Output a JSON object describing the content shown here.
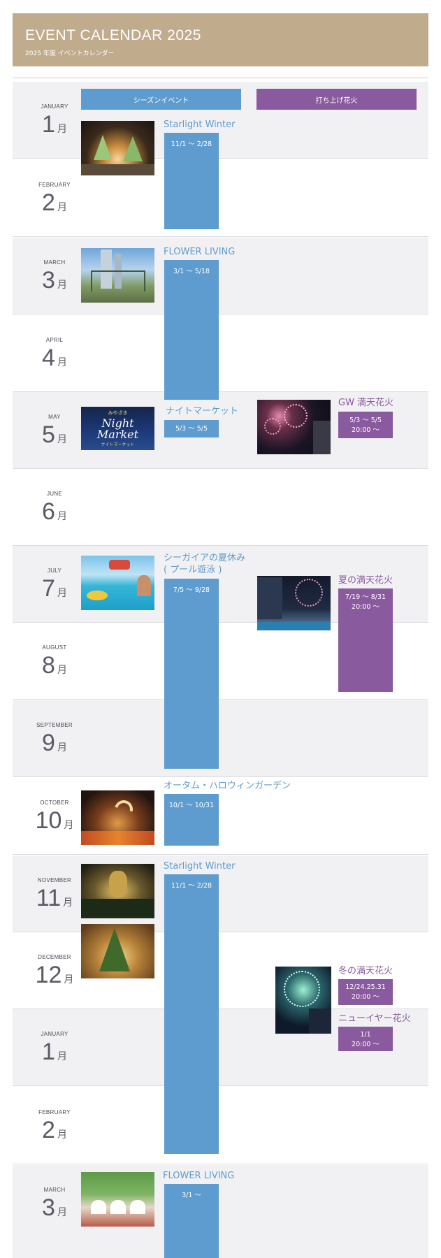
{
  "header": {
    "title": "EVENT CALENDAR 2025",
    "subtitle": "2025 年度 イベントカレンダー"
  },
  "legend": {
    "season": "シーズンイベント",
    "fireworks": "打ち上げ花火"
  },
  "month_suffix": "月",
  "months": [
    {
      "en": "JANUARY",
      "num": "1"
    },
    {
      "en": "FEBRUARY",
      "num": "2"
    },
    {
      "en": "MARCH",
      "num": "3"
    },
    {
      "en": "APRIL",
      "num": "4"
    },
    {
      "en": "MAY",
      "num": "5"
    },
    {
      "en": "JUNE",
      "num": "6"
    },
    {
      "en": "JULY",
      "num": "7"
    },
    {
      "en": "AUGUST",
      "num": "8"
    },
    {
      "en": "SEPTEMBER",
      "num": "9"
    },
    {
      "en": "OCTOBER",
      "num": "10"
    },
    {
      "en": "NOVEMBER",
      "num": "11"
    },
    {
      "en": "DECEMBER",
      "num": "12"
    },
    {
      "en": "JANUARY",
      "num": "1"
    },
    {
      "en": "FEBRUARY",
      "num": "2"
    },
    {
      "en": "MARCH",
      "num": "3"
    }
  ],
  "season_events": [
    {
      "title": "Starlight Winter",
      "dates": "11/1 〜 2/28"
    },
    {
      "title": "FLOWER LIVING",
      "dates": "3/1 〜 5/18"
    },
    {
      "title": "ナイトマーケット",
      "dates": "5/3 〜 5/5"
    },
    {
      "title": "シーガイアの夏休み",
      "title2": "( プール遊泳 )",
      "dates": "7/5 〜 9/28"
    },
    {
      "title": "オータム・ハロウィンガーデン",
      "dates": "10/1 〜 10/31"
    },
    {
      "title": "Starlight Winter",
      "dates": "11/1 〜 2/28"
    },
    {
      "title": "FLOWER LIVING",
      "dates": "3/1 〜"
    }
  ],
  "fireworks_events": [
    {
      "title": "GW 満天花火",
      "dates": "5/3 〜 5/5",
      "time": "20:00 〜"
    },
    {
      "title": "夏の満天花火",
      "dates": "7/19 〜 8/31",
      "time": "20:00 〜"
    },
    {
      "title": "冬の満天花火",
      "dates": "12/24.25.31",
      "time": "20:00 〜"
    },
    {
      "title": "ニューイヤー花火",
      "dates": "1/1",
      "time": "20:00 〜"
    }
  ],
  "night_market_logo": {
    "top": "みやざき",
    "line1": "Night",
    "line2": "Market",
    "line3": "ナイトマーケット"
  },
  "colors": {
    "season": "#5e9ccf",
    "fireworks": "#8a5a9f",
    "header": "#c0ab8d"
  }
}
